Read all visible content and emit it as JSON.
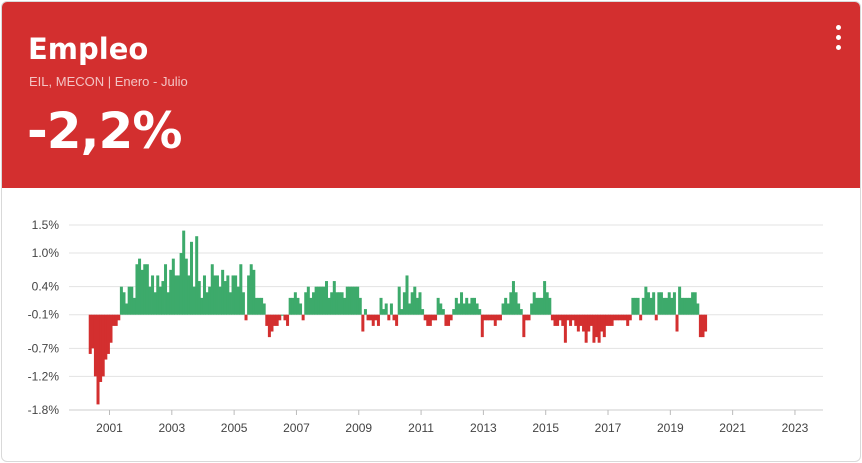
{
  "card": {
    "title": "Empleo",
    "subtitle": "EIL, MECON | Enero - Julio",
    "value": "-2,2%",
    "menu_icon": "more-vertical-icon"
  },
  "colors": {
    "header": "#d32f2f",
    "positive": "#3daa6b",
    "negative": "#d32f2f"
  },
  "chart_data": {
    "type": "bar",
    "title": "",
    "xlabel": "",
    "ylabel": "",
    "y_ticks": [
      {
        "label": "1.5%",
        "value": 1.5
      },
      {
        "label": "1.0%",
        "value": 1.0
      },
      {
        "label": "0.4%",
        "value": 0.4
      },
      {
        "label": "-0.1%",
        "value": -0.1
      },
      {
        "label": "-0.7%",
        "value": -0.7
      },
      {
        "label": "-1.2%",
        "value": -1.2
      },
      {
        "label": "-1.8%",
        "value": -1.8
      }
    ],
    "x_ticks": [
      "2001",
      "2003",
      "2005",
      "2007",
      "2009",
      "2011",
      "2013",
      "2015",
      "2017",
      "2019",
      "2021",
      "2023"
    ],
    "x_range": [
      2000.2,
      2024.4
    ],
    "ylim": [
      -1.8,
      1.5
    ],
    "baseline": -0.1,
    "grid": true,
    "series": [
      {
        "start": [
          2000,
          11
        ],
        "values": [
          -0.8,
          -0.7,
          -1.2,
          -1.7,
          -1.3,
          -1.2,
          -0.9,
          -0.8,
          -0.6,
          -0.3,
          -0.3,
          -0.2,
          0.4,
          0.3,
          0.1,
          0.4,
          0.4,
          0.2,
          0.8,
          0.9,
          0.7,
          0.8,
          0.8,
          0.4,
          0.6,
          0.3,
          0.6,
          0.4,
          0.5,
          0.8,
          0.3,
          0.7,
          0.9,
          0.6,
          0.6,
          1.0,
          1.4,
          0.9,
          0.6,
          1.2,
          0.4,
          1.3,
          0.5,
          0.2,
          0.6,
          0.3,
          0.4,
          0.8,
          0.6,
          0.6,
          0.4,
          0.7,
          0.5,
          0.6,
          0.3,
          0.6,
          0.6,
          0.4,
          0.8,
          0.3,
          -0.2,
          0.6,
          0.8,
          0.7,
          0.2,
          0.2,
          0.2,
          0.1,
          -0.3,
          -0.5,
          -0.4,
          -0.3,
          -0.3,
          -0.2,
          -0.1,
          -0.2,
          -0.3,
          0.2,
          0.2,
          0.3,
          0.2,
          0.1,
          -0.2,
          0.3,
          0.4,
          0.2,
          0.3,
          0.4,
          0.4,
          0.4,
          0.4,
          0.5,
          0.2,
          0.3,
          0.5,
          0.3,
          0.3,
          0.3,
          0.2,
          0.4,
          0.4,
          0.4,
          0.4,
          0.4,
          0.2,
          -0.4,
          0.0,
          -0.2,
          -0.2,
          -0.3,
          -0.2,
          -0.3,
          0.2,
          0.0,
          0.1,
          -0.2,
          0.1,
          -0.2,
          -0.3,
          0.4,
          0.0,
          0.3,
          0.6,
          0.1,
          0.3,
          0.4,
          0.2,
          0.3,
          0.0,
          -0.2,
          -0.3,
          -0.3,
          -0.2,
          -0.2,
          0.2,
          0.1,
          0.0,
          -0.3,
          -0.3,
          -0.2,
          0.0,
          0.2,
          0.1,
          0.3,
          0.1,
          0.2,
          0.1,
          0.2,
          0.2,
          0.1,
          0.0,
          -0.5,
          -0.2,
          -0.2,
          -0.2,
          -0.2,
          -0.3,
          -0.2,
          -0.2,
          0.1,
          0.2,
          0.1,
          0.3,
          0.5,
          0.3,
          0.1,
          0.0,
          -0.5,
          -0.2,
          -0.2,
          0.1,
          0.3,
          0.2,
          0.2,
          0.2,
          0.5,
          0.3,
          0.2,
          -0.2,
          -0.3,
          -0.3,
          -0.2,
          -0.3,
          -0.6,
          -0.2,
          -0.3,
          -0.2,
          -0.3,
          -0.4,
          -0.3,
          -0.4,
          -0.6,
          -0.4,
          -0.3,
          -0.6,
          -0.5,
          -0.6,
          -0.4,
          -0.5,
          -0.3,
          -0.3,
          -0.3,
          -0.2,
          -0.2,
          -0.2,
          -0.2,
          -0.2,
          -0.3,
          -0.2,
          0.2,
          0.2,
          0.2,
          -0.2,
          0.2,
          0.4,
          0.3,
          0.2,
          0.3,
          -0.2,
          0.3,
          0.3,
          0.2,
          0.2,
          0.3,
          0.2,
          0.3,
          -0.4,
          0.4,
          0.2,
          0.2,
          0.2,
          0.2,
          0.3,
          0.3,
          0.1,
          -0.5,
          -0.5,
          -0.4
        ]
      }
    ]
  }
}
